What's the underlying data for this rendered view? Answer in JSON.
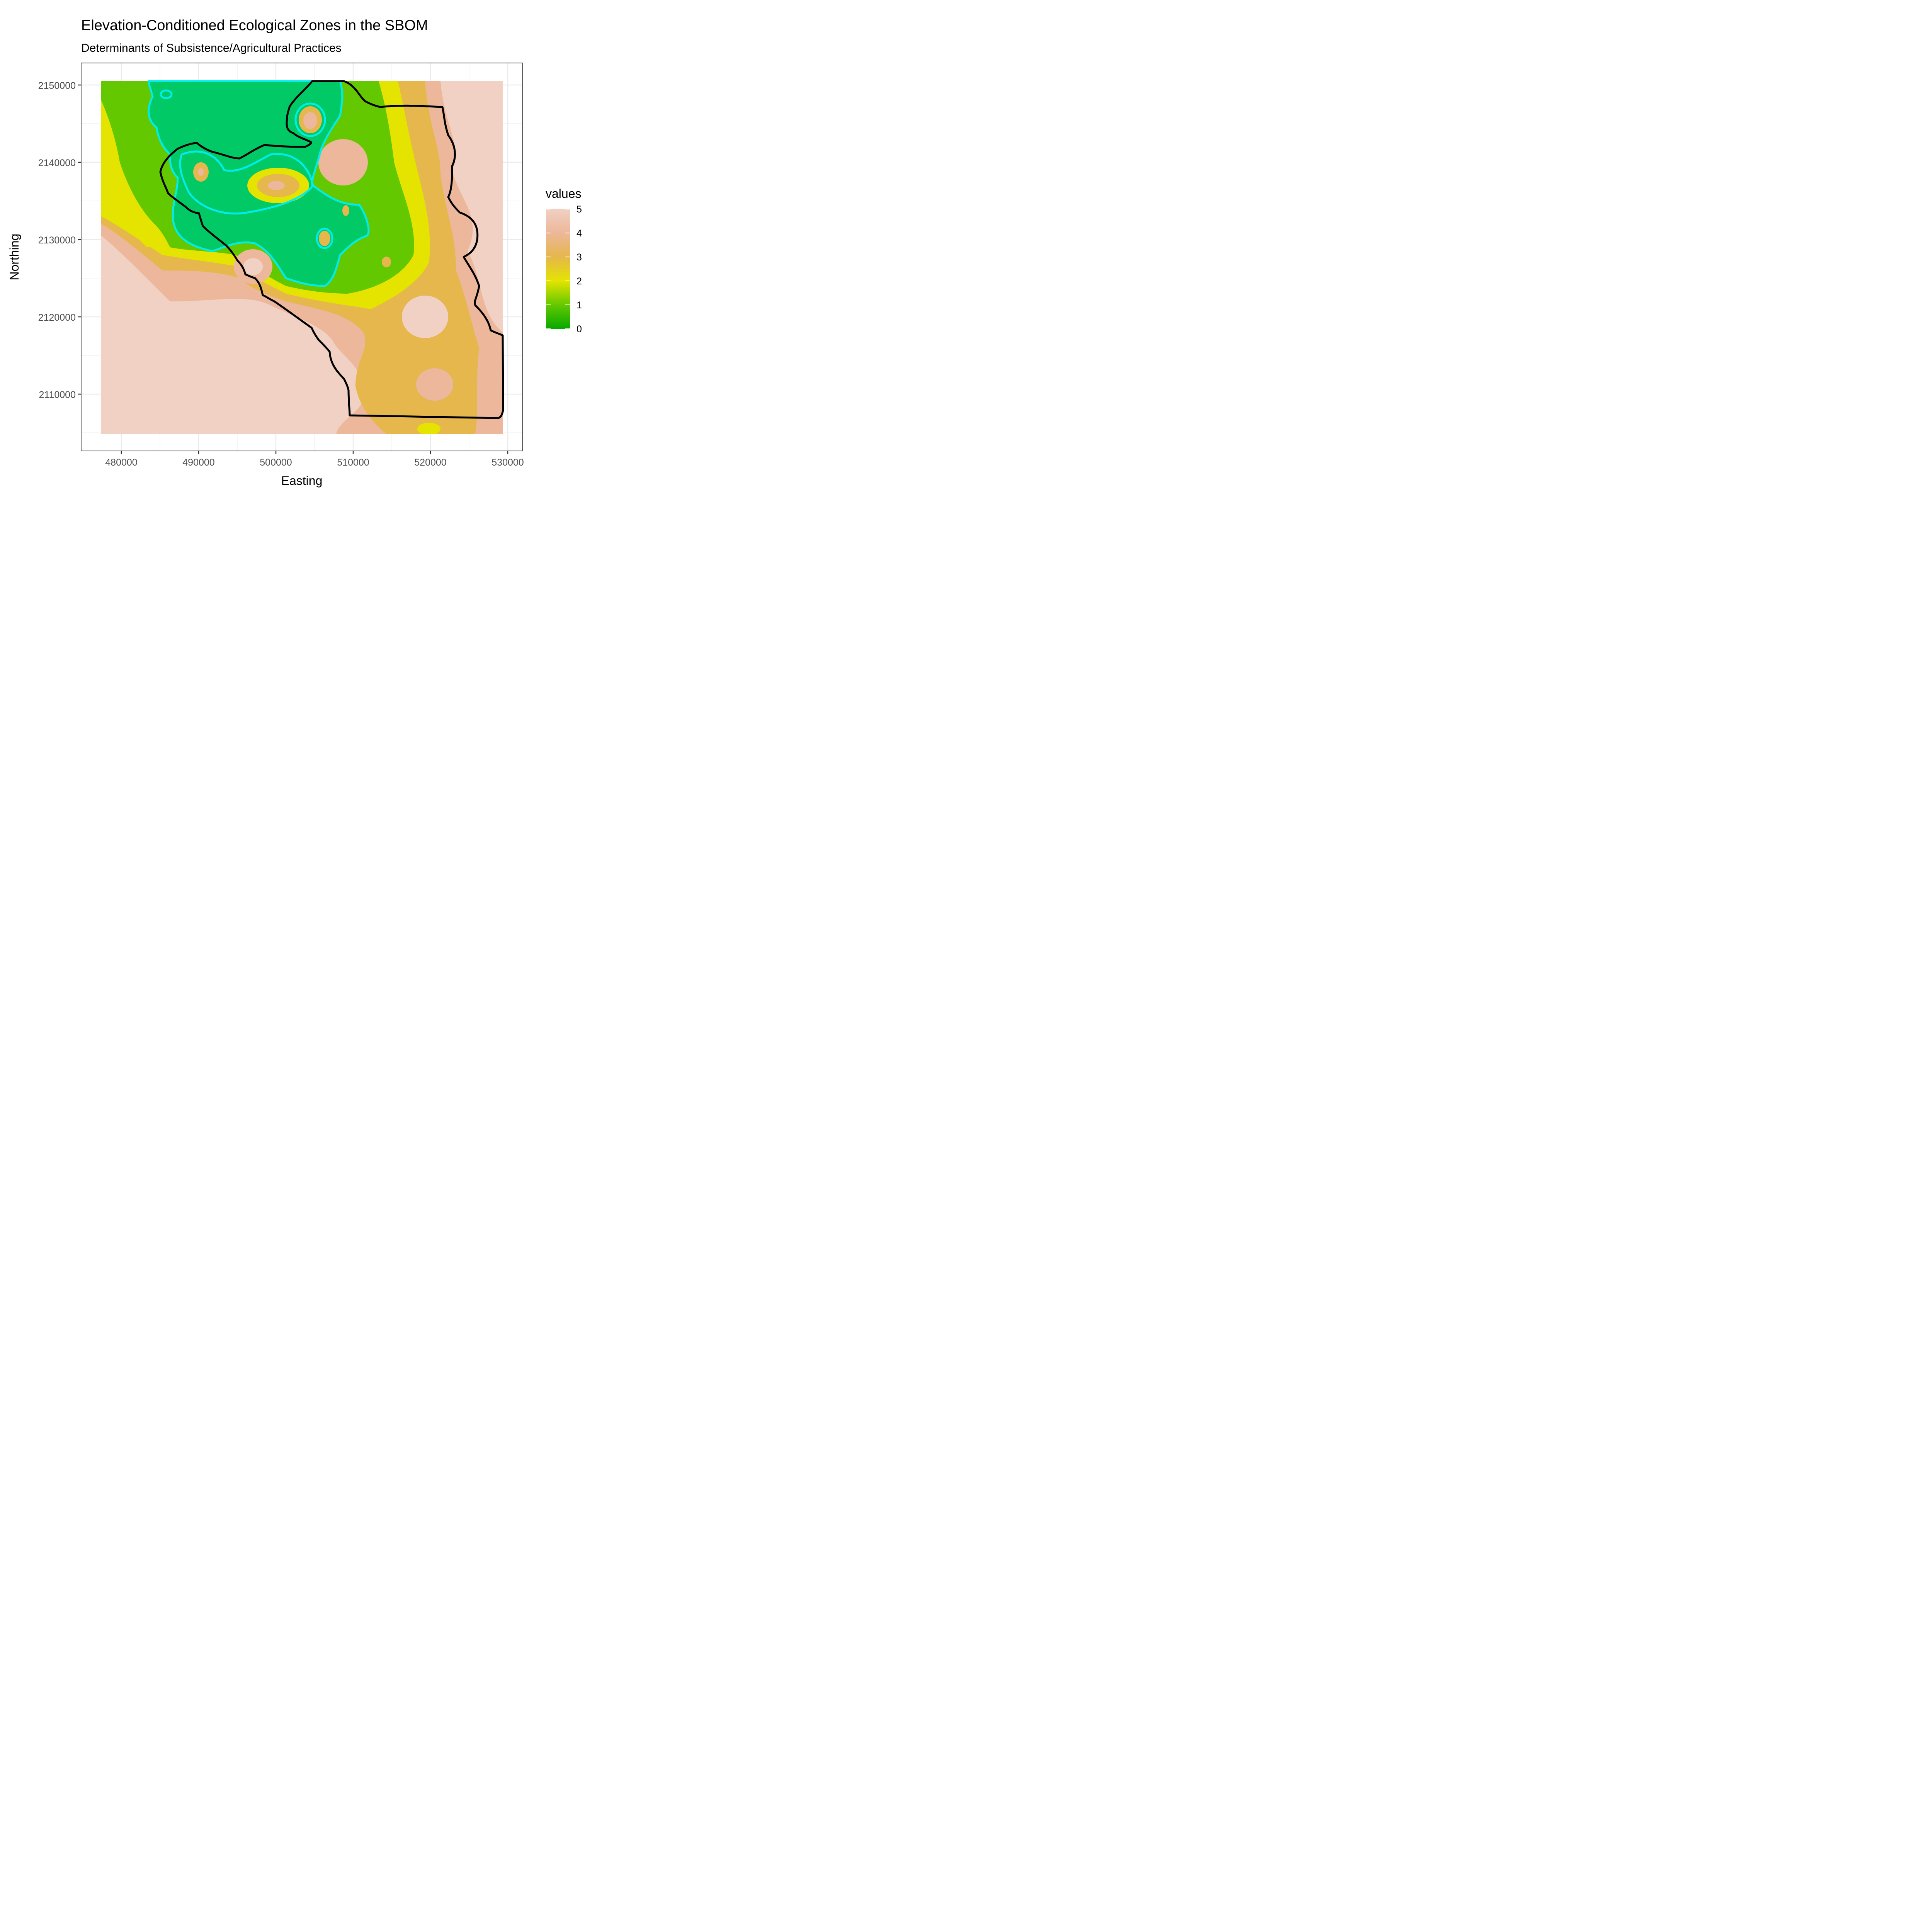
{
  "title": "Elevation-Conditioned Ecological Zones in the SBOM",
  "subtitle": "Determinants of Subsistence/Agricultural Practices",
  "x_axis": {
    "label": "Easting",
    "ticks": [
      "480000",
      "490000",
      "500000",
      "510000",
      "520000",
      "530000"
    ]
  },
  "y_axis": {
    "label": "Northing",
    "ticks": [
      "2110000",
      "2120000",
      "2130000",
      "2140000",
      "2150000"
    ]
  },
  "legend": {
    "title": "values",
    "labels": [
      "5",
      "4",
      "3",
      "2",
      "1",
      "0"
    ]
  },
  "colors": {
    "zone_0": "#06a800",
    "zone_1": "#63c800",
    "zone_teal": "#00c966",
    "zone_2": "#e4e400",
    "zone_3": "#e5b74c",
    "zone_4": "#ecb79a",
    "zone_5": "#f1d1c4",
    "boundary": "#000000",
    "contour": "#00eded"
  },
  "map_data": {
    "type": "raster_with_overlays",
    "x_range": [
      477500,
      529500
    ],
    "y_range": [
      2104500,
      2150500
    ],
    "value_range": [
      0,
      5
    ],
    "overlays": [
      "black boundary polygon",
      "cyan contour"
    ]
  }
}
